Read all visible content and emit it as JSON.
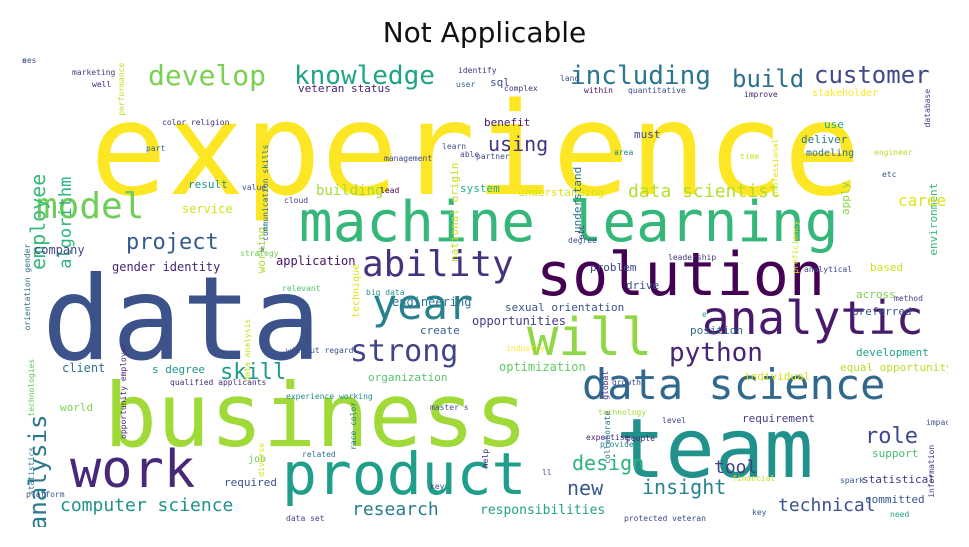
{
  "title": "Not Applicable",
  "words": [
    {
      "text": "experience",
      "color": "#fde725"
    },
    {
      "text": "data",
      "color": "#3b528b"
    },
    {
      "text": "business",
      "color": "#a0da39"
    },
    {
      "text": "team",
      "color": "#21918c"
    },
    {
      "text": "machine learning",
      "color": "#35b779"
    },
    {
      "text": "solution",
      "color": "#440154"
    },
    {
      "text": "product",
      "color": "#1f9e89"
    },
    {
      "text": "work",
      "color": "#482878"
    },
    {
      "text": "analytic",
      "color": "#481a6c"
    },
    {
      "text": "data science",
      "color": "#31688e"
    },
    {
      "text": "will",
      "color": "#8fd744"
    },
    {
      "text": "model",
      "color": "#6ece58"
    },
    {
      "text": "year",
      "color": "#26828e"
    },
    {
      "text": "ability",
      "color": "#46327e"
    },
    {
      "text": "strong",
      "color": "#414487"
    },
    {
      "text": "develop",
      "color": "#7ad151"
    },
    {
      "text": "knowledge",
      "color": "#20a486"
    },
    {
      "text": "including",
      "color": "#2a788e"
    },
    {
      "text": "customer",
      "color": "#3e4989"
    },
    {
      "text": "build",
      "color": "#2c728e"
    },
    {
      "text": "python",
      "color": "#482475"
    },
    {
      "text": "project",
      "color": "#365c8d"
    },
    {
      "text": "employee",
      "color": "#38b977"
    },
    {
      "text": "algorithm",
      "color": "#2fb47c"
    },
    {
      "text": "analysis",
      "color": "#2a788e"
    },
    {
      "text": "skill",
      "color": "#1e9b8a"
    },
    {
      "text": "role",
      "color": "#3e4a89"
    },
    {
      "text": "design",
      "color": "#2db27d"
    },
    {
      "text": "new",
      "color": "#375a8c"
    },
    {
      "text": "insight",
      "color": "#25848e"
    },
    {
      "text": "tool",
      "color": "#424186"
    },
    {
      "text": "data scientist",
      "color": "#b5de2b"
    },
    {
      "text": "using",
      "color": "#463480"
    },
    {
      "text": "computer science",
      "color": "#21918c"
    },
    {
      "text": "research",
      "color": "#287c8e"
    },
    {
      "text": "technical",
      "color": "#3b528b"
    },
    {
      "text": "responsibilities",
      "color": "#20a386"
    },
    {
      "text": "building",
      "color": "#a5db36"
    },
    {
      "text": "service",
      "color": "#d2e21b"
    },
    {
      "text": "company",
      "color": "#3f4788"
    },
    {
      "text": "gender identity",
      "color": "#482576"
    },
    {
      "text": "application",
      "color": "#471164"
    },
    {
      "text": "engineering",
      "color": "#2b758e"
    },
    {
      "text": "opportunities",
      "color": "#433d84"
    },
    {
      "text": "sexual orientation",
      "color": "#3a538b"
    },
    {
      "text": "create",
      "color": "#34618d"
    },
    {
      "text": "position",
      "color": "#2f6b8e"
    },
    {
      "text": "optimization",
      "color": "#60ca60"
    },
    {
      "text": "organization",
      "color": "#54c568"
    },
    {
      "text": "understanding",
      "color": "#dde318"
    },
    {
      "text": "understand",
      "color": "#2c738e"
    },
    {
      "text": "problem",
      "color": "#404588"
    },
    {
      "text": "drive",
      "color": "#3b518b"
    },
    {
      "text": "benefit",
      "color": "#48196b"
    },
    {
      "text": "system",
      "color": "#26ad81"
    },
    {
      "text": "result",
      "color": "#20928c"
    },
    {
      "text": "sql",
      "color": "#3d4e8a"
    },
    {
      "text": "veteran status",
      "color": "#482173"
    },
    {
      "text": "national origin",
      "color": "#c0df25"
    },
    {
      "text": "working",
      "color": "#addc30"
    },
    {
      "text": "client",
      "color": "#2d708e"
    },
    {
      "text": "world",
      "color": "#7fd34e"
    },
    {
      "text": "s degree",
      "color": "#1f968b"
    },
    {
      "text": "required",
      "color": "#3b528b"
    },
    {
      "text": "job",
      "color": "#6ccd5a"
    },
    {
      "text": "development",
      "color": "#20a386"
    },
    {
      "text": "equal opportunity",
      "color": "#b8de29"
    },
    {
      "text": "individual",
      "color": "#d5e21a"
    },
    {
      "text": "preferred",
      "color": "#3b528b"
    },
    {
      "text": "across",
      "color": "#7ad151"
    },
    {
      "text": "based",
      "color": "#cde11d"
    },
    {
      "text": "requirement",
      "color": "#433e85"
    },
    {
      "text": "support",
      "color": "#46c06f"
    },
    {
      "text": "statistical",
      "color": "#453581"
    },
    {
      "text": "committed",
      "color": "#39568c"
    },
    {
      "text": "environment",
      "color": "#35b779"
    },
    {
      "text": "apply",
      "color": "#8bd646"
    },
    {
      "text": "deliver",
      "color": "#2a788e"
    },
    {
      "text": "modeling",
      "color": "#2c718e"
    },
    {
      "text": "use",
      "color": "#25ab82"
    },
    {
      "text": "must",
      "color": "#3e4a89"
    },
    {
      "text": "stakeholder",
      "color": "#fde725"
    },
    {
      "text": "technique",
      "color": "#dfe318"
    },
    {
      "text": "big data",
      "color": "#20938c"
    },
    {
      "text": "cloud",
      "color": "#414487"
    },
    {
      "text": "management",
      "color": "#404688"
    },
    {
      "text": "proficiency",
      "color": "#d8e219"
    },
    {
      "text": "professional",
      "color": "#dde318"
    },
    {
      "text": "marketing",
      "color": "#453882"
    },
    {
      "text": "well",
      "color": "#472c7a"
    },
    {
      "text": "identify",
      "color": "#46307e"
    },
    {
      "text": "quantitative",
      "color": "#3b528b"
    },
    {
      "text": "improve",
      "color": "#482475"
    },
    {
      "text": "engineer",
      "color": "#b5de2b"
    },
    {
      "text": "user",
      "color": "#31688e"
    },
    {
      "text": "complex",
      "color": "#46337f"
    },
    {
      "text": "within",
      "color": "#471063"
    },
    {
      "text": "area",
      "color": "#26828e"
    },
    {
      "text": "learn",
      "color": "#3b528b"
    },
    {
      "text": "able",
      "color": "#3e4a89"
    },
    {
      "text": "time",
      "color": "#cae11f"
    },
    {
      "text": "relevant",
      "color": "#50c46a"
    },
    {
      "text": "leadership",
      "color": "#443983"
    },
    {
      "text": "analytical",
      "color": "#3e4a89"
    },
    {
      "text": "strategy",
      "color": "#6ece58"
    },
    {
      "text": "orientation gender",
      "color": "#2e6e8e"
    },
    {
      "text": "value",
      "color": "#3b528b"
    },
    {
      "text": "part",
      "color": "#35608d"
    },
    {
      "text": "qualified applicants",
      "color": "#472d7b"
    },
    {
      "text": "platform",
      "color": "#3b528b"
    },
    {
      "text": "statistics",
      "color": "#2a778e"
    },
    {
      "text": "expertise",
      "color": "#482677"
    },
    {
      "text": "provide",
      "color": "#25858e"
    },
    {
      "text": "people",
      "color": "#482071"
    },
    {
      "text": "level",
      "color": "#404588"
    },
    {
      "text": "financial",
      "color": "#c2df23"
    },
    {
      "text": "technology",
      "color": "#a2da37"
    },
    {
      "text": "growth",
      "color": "#3e4c8a"
    },
    {
      "text": "global",
      "color": "#482878"
    },
    {
      "text": "impact",
      "color": "#3b528b"
    },
    {
      "text": "need",
      "color": "#20a486"
    },
    {
      "text": "data set",
      "color": "#433e85"
    },
    {
      "text": "help",
      "color": "#482576"
    },
    {
      "text": "related",
      "color": "#2d708e"
    },
    {
      "text": "without regard",
      "color": "#3b528b"
    },
    {
      "text": "experience working",
      "color": "#21918c"
    },
    {
      "text": "race color",
      "color": "#2c738e"
    },
    {
      "text": "diverse",
      "color": "#dfe318"
    },
    {
      "text": "collaborate",
      "color": "#2c728e"
    },
    {
      "text": "technologies",
      "color": "#5ec962"
    },
    {
      "text": "color religion",
      "color": "#46307e"
    },
    {
      "text": "communication skills",
      "color": "#2c728e"
    },
    {
      "text": "opportunity employer",
      "color": "#482878"
    },
    {
      "text": "protected veteran",
      "color": "#3f4788"
    },
    {
      "text": "master s",
      "color": "#3b528b"
    },
    {
      "text": "data analysis",
      "color": "#c5e021"
    },
    {
      "text": "performance",
      "color": "#bddf26"
    },
    {
      "text": "key",
      "color": "#3e4989"
    },
    {
      "text": "lead",
      "color": "#440154"
    },
    {
      "text": "land",
      "color": "#3b528b"
    },
    {
      "text": "spark",
      "color": "#3b528b"
    },
    {
      "text": "information",
      "color": "#46337f"
    },
    {
      "text": "method",
      "color": "#433e85"
    },
    {
      "text": "database",
      "color": "#404588"
    },
    {
      "text": "partner",
      "color": "#3b528b"
    },
    {
      "text": "degree",
      "color": "#3b528b"
    },
    {
      "text": "etc",
      "color": "#453781"
    },
    {
      "text": "career",
      "color": "#dfe318"
    },
    {
      "text": "industry",
      "color": "#fde725"
    },
    {
      "text": "e",
      "color": "#22a785"
    },
    {
      "text": "s",
      "color": "#31688e"
    },
    {
      "text": "s",
      "color": "#2a788e"
    },
    {
      "text": "ll",
      "color": "#3b528b"
    },
    {
      "text": "key",
      "color": "#3b528b"
    },
    {
      "text": "etc",
      "color": "#3b528b"
    },
    {
      "text": "ses",
      "color": "#3b528b"
    },
    {
      "text": "e",
      "color": "#3b528b"
    }
  ]
}
